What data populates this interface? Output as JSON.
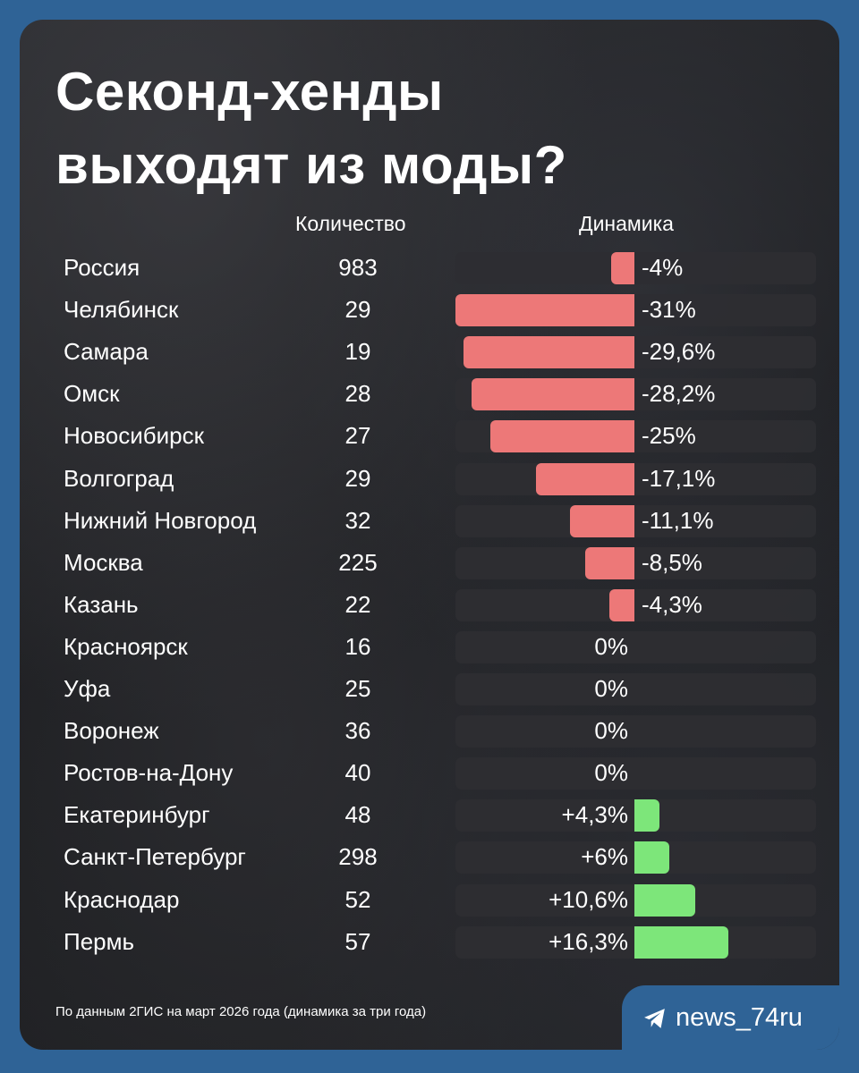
{
  "title": {
    "line1": "Секонд-хенды",
    "line2": "выходят из моды?"
  },
  "columns": {
    "count": "Количество",
    "dynamic": "Динамика"
  },
  "chart_data": {
    "type": "bar",
    "title": "Секонд-хенды выходят из моды?",
    "categories": [
      "Россия",
      "Челябинск",
      "Самара",
      "Омск",
      "Новосибирск",
      "Волгоград",
      "Нижний Новгород",
      "Москва",
      "Казань",
      "Красноярск",
      "Уфа",
      "Воронеж",
      "Ростов-на-Дону",
      "Екатеринбург",
      "Санкт-Петербург",
      "Краснодар",
      "Пермь"
    ],
    "series": [
      {
        "name": "Количество",
        "values": [
          983,
          29,
          19,
          28,
          27,
          29,
          32,
          225,
          22,
          16,
          25,
          36,
          40,
          48,
          298,
          52,
          57
        ]
      },
      {
        "name": "Динамика",
        "values": [
          -4,
          -31,
          -29.6,
          -28.2,
          -25,
          -17.1,
          -11.1,
          -8.5,
          -4.3,
          0,
          0,
          0,
          0,
          4.3,
          6,
          10.6,
          16.3
        ]
      }
    ],
    "labels": [
      "-4%",
      "-31%",
      "-29,6%",
      "-28,2%",
      "-25%",
      "-17,1%",
      "-11,1%",
      "-8,5%",
      "-4,3%",
      "0%",
      "0%",
      "0%",
      "0%",
      "+4,3%",
      "+6%",
      "+10,6%",
      "+16,3%"
    ],
    "neg_color": "#ed7878",
    "pos_color": "#7de67a"
  },
  "footer": {
    "note": "По данным 2ГИС на март 2026 года (динамика за три года)",
    "brand": "news_74ru",
    "brand_icon": "telegram-icon"
  },
  "colors": {
    "frame": "#2f6396"
  }
}
